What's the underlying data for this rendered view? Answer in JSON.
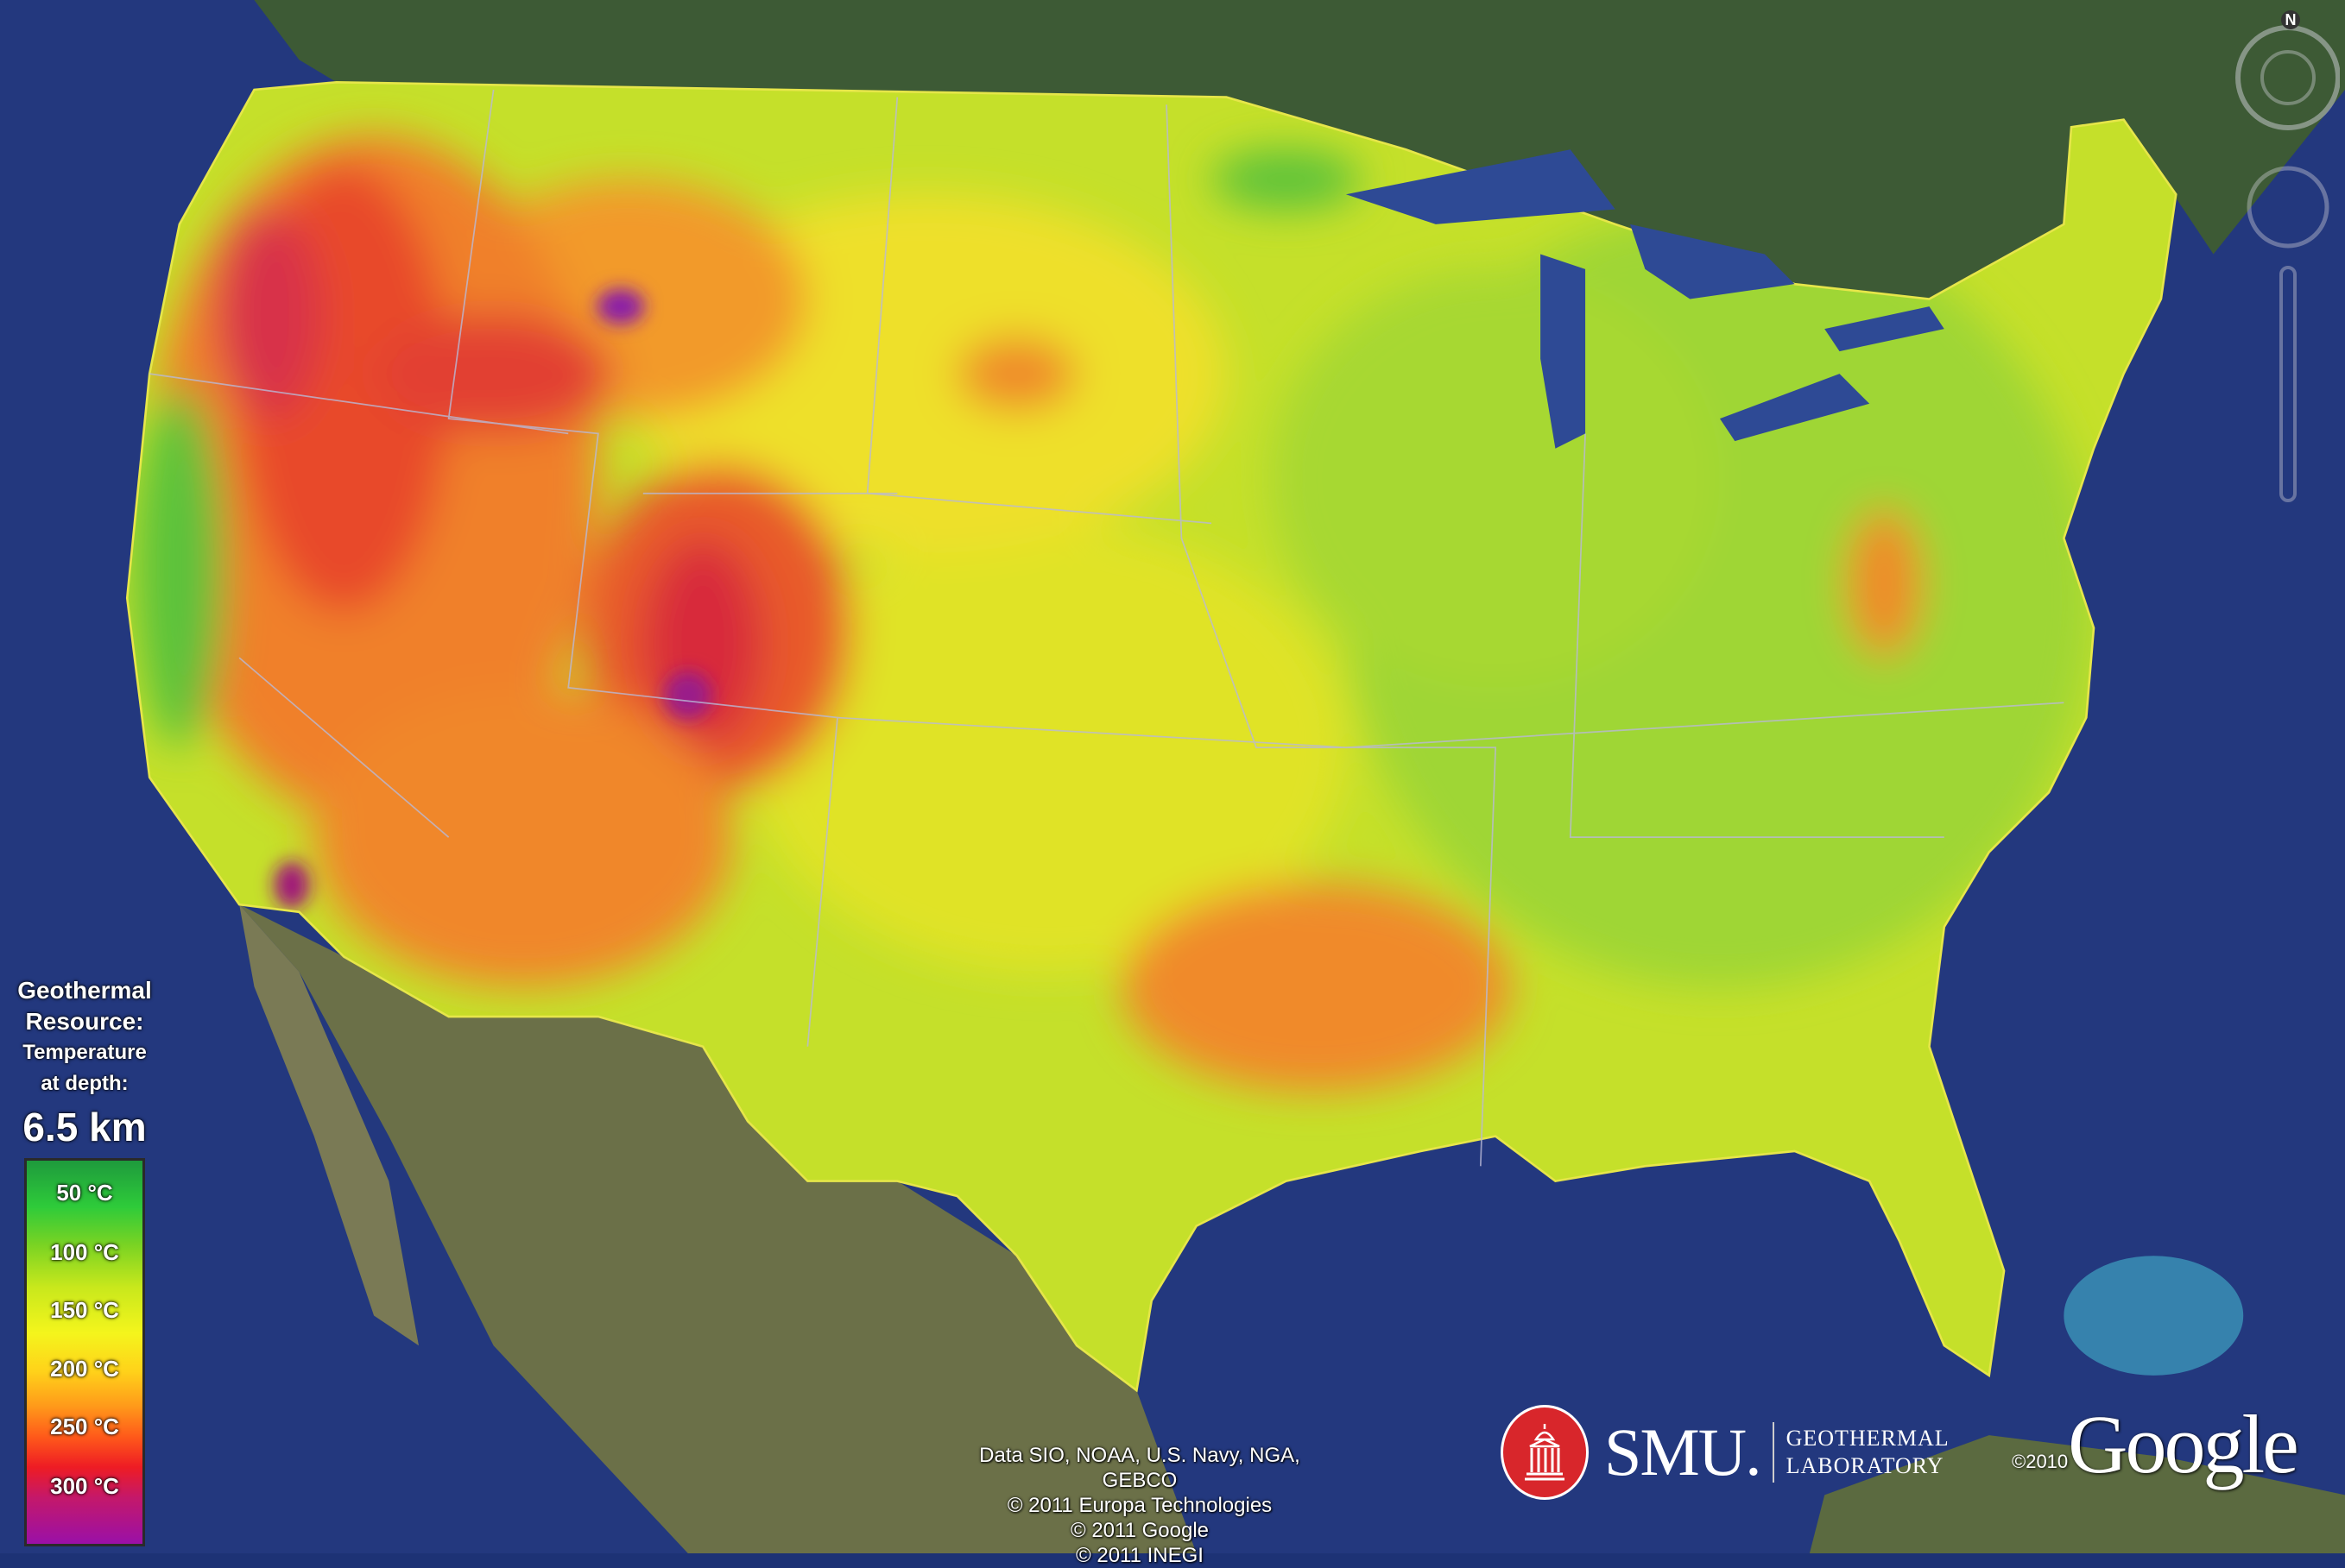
{
  "legend": {
    "title_line1": "Geothermal",
    "title_line2": "Resource:",
    "subtitle_line1": "Temperature",
    "subtitle_line2": "at depth:",
    "depth": "6.5 km",
    "ticks": [
      "50 °C",
      "100 °C",
      "150 °C",
      "200 °C",
      "250 °C",
      "300 °C"
    ],
    "colors": [
      "#1e9a3c",
      "#2ecb3a",
      "#7ad323",
      "#c8e81c",
      "#f4f51c",
      "#ffd21a",
      "#ff9a1a",
      "#ff5a1a",
      "#ee1c24",
      "#c4186a",
      "#9a10a8"
    ]
  },
  "attribution": {
    "lines": [
      "Data SIO, NOAA, U.S. Navy, NGA, GEBCO",
      "© 2011 Europa Technologies",
      "© 2011 Google",
      "© 2011 INEGI"
    ]
  },
  "logo": {
    "smu_text": "SMU.",
    "lab_line1": "GEOTHERMAL",
    "lab_line2": "LABORATORY",
    "accent": "#d8262b"
  },
  "google": {
    "copyright": "©2010",
    "brand": "Google"
  },
  "nav": {
    "compass_label": "N"
  }
}
